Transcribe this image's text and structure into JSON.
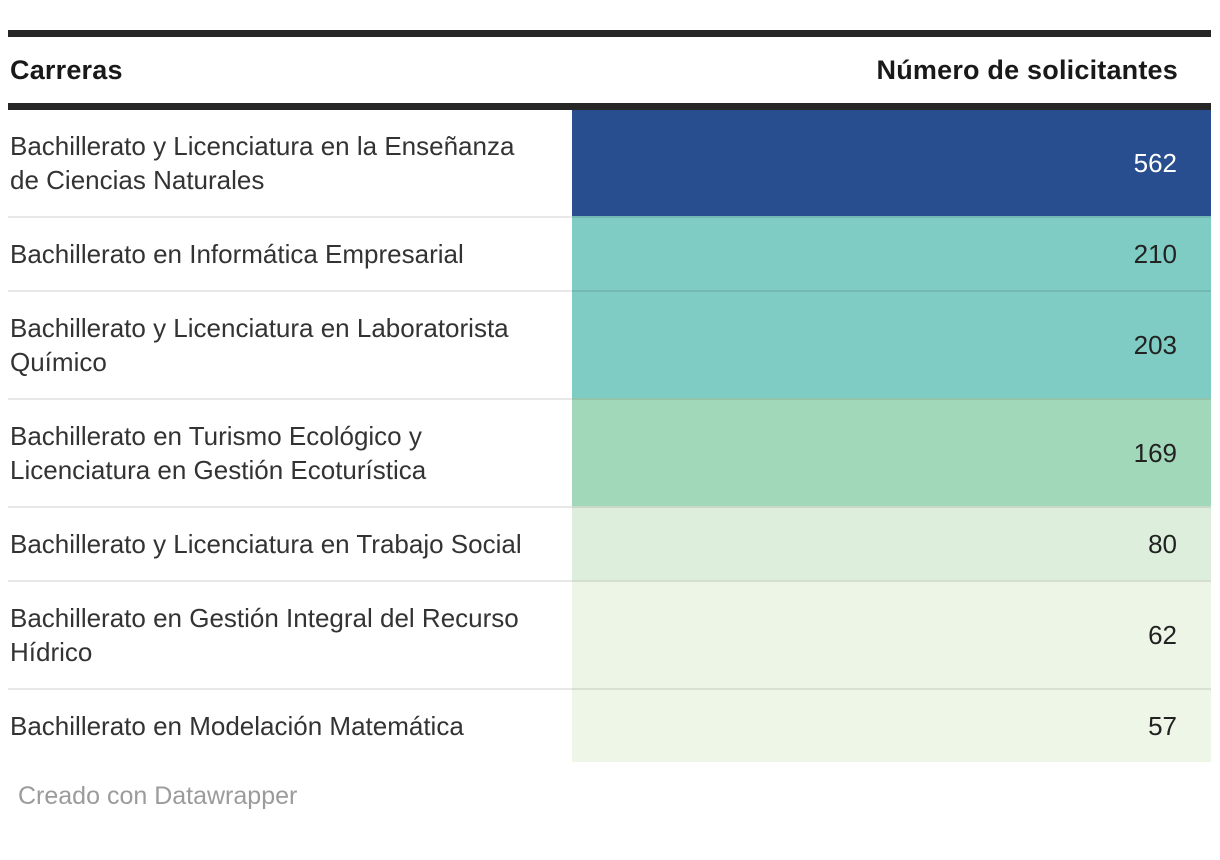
{
  "table": {
    "columns": {
      "careers": "Carreras",
      "applicants": "Número de solicitantes"
    },
    "rows": [
      {
        "career": "Bachillerato y Licenciatura en la Enseñanza de Ciencias Naturales",
        "value": "562",
        "bg": "#284e8f",
        "text_color": "#ffffff"
      },
      {
        "career": "Bachillerato en Informática Empresarial",
        "value": "210",
        "bg": "#7fccc4",
        "text_color": "#222222"
      },
      {
        "career": "Bachillerato y Licenciatura en Laboratorista Químico",
        "value": "203",
        "bg": "#7fccc4",
        "text_color": "#222222"
      },
      {
        "career": "Bachillerato en Turismo Ecológico y Licenciatura en Gestión Ecoturística",
        "value": "169",
        "bg": "#a1d8ba",
        "text_color": "#222222"
      },
      {
        "career": "Bachillerato y Licenciatura en Trabajo Social",
        "value": "80",
        "bg": "#ddefdc",
        "text_color": "#222222"
      },
      {
        "career": "Bachillerato en Gestión Integral del Recurso Hídrico",
        "value": "62",
        "bg": "#ecf5e6",
        "text_color": "#222222"
      },
      {
        "career": "Bachillerato en Modelación Matemática",
        "value": "57",
        "bg": "#eef6e8",
        "text_color": "#222222"
      }
    ]
  },
  "footer": {
    "credit": "Creado con Datawrapper"
  },
  "colors": {
    "rule": "#262626",
    "separator": "#e8e8e8",
    "career_text": "#333333",
    "header_text": "#191919",
    "credit_text": "#9b9b9b"
  },
  "chart_data": {
    "type": "table",
    "title": "",
    "columns": [
      "Carreras",
      "Número de solicitantes"
    ],
    "heatmap_column": "Número de solicitantes",
    "categories": [
      "Bachillerato y Licenciatura en la Enseñanza de Ciencias Naturales",
      "Bachillerato en Informática Empresarial",
      "Bachillerato y Licenciatura en Laboratorista Químico",
      "Bachillerato en Turismo Ecológico y Licenciatura en Gestión Ecoturística",
      "Bachillerato y Licenciatura en Trabajo Social",
      "Bachillerato en Gestión Integral del Recurso Hídrico",
      "Bachillerato en Modelación Matemática"
    ],
    "values": [
      562,
      210,
      203,
      169,
      80,
      62,
      57
    ],
    "color_scale": [
      "#284e8f",
      "#7fccc4",
      "#7fccc4",
      "#a1d8ba",
      "#ddefdc",
      "#ecf5e6",
      "#eef6e8"
    ],
    "legend_position": "none",
    "grid": false,
    "footer": "Creado con Datawrapper"
  }
}
